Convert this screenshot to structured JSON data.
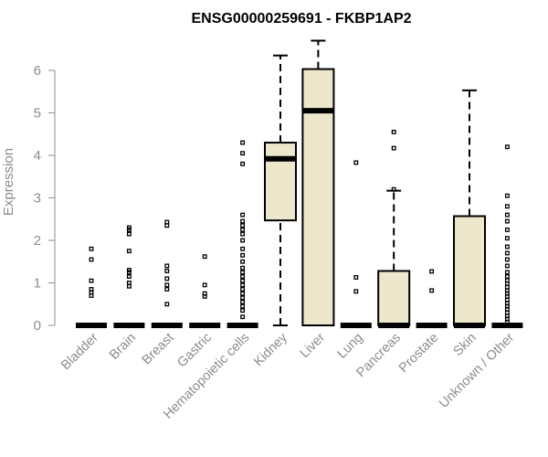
{
  "chart_data": {
    "type": "box",
    "title": "ENSG00000259691 - FKBP1AP2",
    "xlabel": "",
    "ylabel": "Expression",
    "ylim": [
      0,
      6.7
    ],
    "yticks": [
      0,
      1,
      2,
      3,
      4,
      5,
      6
    ],
    "grid": false,
    "box_fill": "#ede7cc",
    "categories": [
      "Bladder",
      "Brain",
      "Breast",
      "Gastric",
      "Hematopoietic cells",
      "Kidney",
      "Liver",
      "Lung",
      "Pancreas",
      "Prostate",
      "Skin",
      "Unknown / Other"
    ],
    "boxes": [
      {
        "category": "Bladder",
        "min": 0,
        "q1": 0,
        "median": 0,
        "q3": 0,
        "max": 0,
        "outliers": [
          0.7,
          0.78,
          0.85,
          1.05,
          1.55,
          1.8
        ]
      },
      {
        "category": "Brain",
        "min": 0,
        "q1": 0,
        "median": 0,
        "q3": 0,
        "max": 0,
        "outliers": [
          0.92,
          1.0,
          1.15,
          1.25,
          1.3,
          1.75,
          2.15,
          2.25,
          2.3
        ]
      },
      {
        "category": "Breast",
        "min": 0,
        "q1": 0,
        "median": 0,
        "q3": 0,
        "max": 0,
        "outliers": [
          0.5,
          0.85,
          0.95,
          1.1,
          1.28,
          1.4,
          2.35,
          2.43
        ]
      },
      {
        "category": "Gastric",
        "min": 0,
        "q1": 0,
        "median": 0,
        "q3": 0,
        "max": 0,
        "outliers": [
          0.68,
          0.75,
          0.95,
          1.62
        ]
      },
      {
        "category": "Hematopoietic cells",
        "min": 0,
        "q1": 0,
        "median": 0,
        "q3": 0,
        "max": 0,
        "outliers": [
          0.2,
          0.35,
          0.45,
          0.55,
          0.65,
          0.75,
          0.85,
          0.95,
          1.05,
          1.15,
          1.25,
          1.35,
          1.5,
          1.65,
          1.8,
          2.0,
          2.15,
          2.25,
          2.35,
          2.45,
          2.6,
          3.8,
          4.05,
          4.3
        ]
      },
      {
        "category": "Kidney",
        "min": 0,
        "q1": 2.47,
        "median": 3.92,
        "q3": 4.3,
        "max": 6.35,
        "outliers": []
      },
      {
        "category": "Liver",
        "min": 0,
        "q1": 0,
        "median": 5.05,
        "q3": 6.03,
        "max": 6.7,
        "outliers": []
      },
      {
        "category": "Lung",
        "min": 0,
        "q1": 0,
        "median": 0,
        "q3": 0,
        "max": 0,
        "outliers": [
          0.8,
          1.13,
          3.83
        ]
      },
      {
        "category": "Pancreas",
        "min": 0,
        "q1": 0,
        "median": 0,
        "q3": 1.28,
        "max": 3.17,
        "outliers": [
          3.2,
          4.17,
          4.55
        ]
      },
      {
        "category": "Prostate",
        "min": 0,
        "q1": 0,
        "median": 0,
        "q3": 0,
        "max": 0,
        "outliers": [
          0.82,
          1.27
        ]
      },
      {
        "category": "Skin",
        "min": 0,
        "q1": 0,
        "median": 0,
        "q3": 2.57,
        "max": 5.53,
        "outliers": []
      },
      {
        "category": "Unknown / Other",
        "min": 0,
        "q1": 0,
        "median": 0,
        "q3": 0,
        "max": 0,
        "outliers": [
          0.08,
          0.15,
          0.22,
          0.3,
          0.38,
          0.45,
          0.52,
          0.6,
          0.68,
          0.75,
          0.82,
          0.9,
          0.98,
          1.06,
          1.15,
          1.25,
          1.4,
          1.55,
          1.7,
          1.85,
          2.05,
          2.25,
          2.45,
          2.6,
          2.8,
          3.05,
          4.2
        ]
      }
    ]
  }
}
